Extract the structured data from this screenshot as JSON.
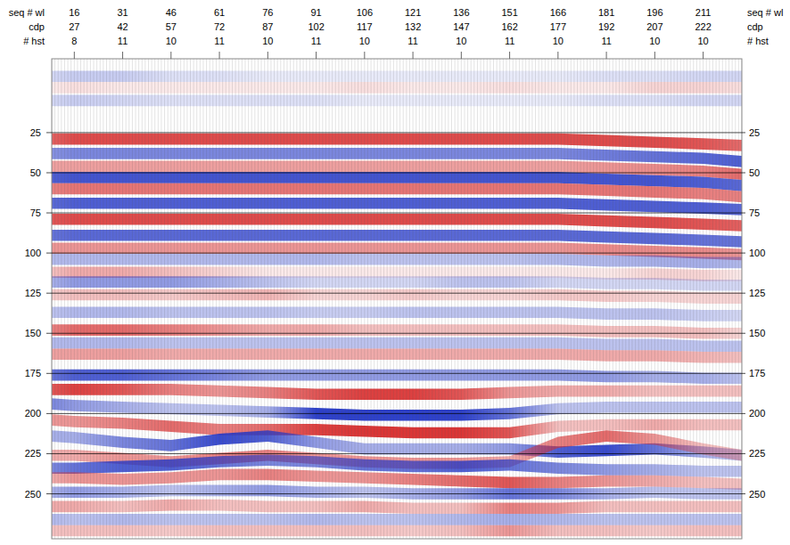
{
  "chart_data": {
    "type": "seismic",
    "header_rows": [
      "seq # wl",
      "cdp",
      "# hst"
    ],
    "xticks": [
      16,
      31,
      46,
      61,
      76,
      91,
      106,
      121,
      136,
      151,
      166,
      181,
      196,
      211
    ],
    "cdp": [
      27,
      42,
      57,
      72,
      87,
      102,
      117,
      132,
      147,
      162,
      177,
      192,
      207,
      222
    ],
    "hst": [
      8,
      11,
      10,
      11,
      10,
      11,
      10,
      11,
      10,
      11,
      10,
      11,
      10,
      10
    ],
    "xlim": [
      9,
      223
    ],
    "ylim": [
      -21,
      278
    ],
    "yticks": [
      25,
      50,
      75,
      100,
      125,
      150,
      175,
      200,
      225,
      250
    ],
    "grid": true,
    "x": [
      9,
      16,
      31,
      46,
      61,
      76,
      91,
      106,
      121,
      136,
      151,
      166,
      181,
      196,
      211,
      223
    ],
    "events": [
      {
        "color": "#2236c8",
        "t": [
          -10,
          -10,
          -10,
          -10,
          -10,
          -10,
          -10,
          -10,
          -10,
          -10,
          -10,
          -10,
          -10,
          -10,
          -10,
          -10
        ],
        "amp": [
          0.2,
          0.25,
          0.25,
          0.15,
          0.15,
          0.1,
          0.1,
          0.1,
          0.1,
          0.1,
          0.1,
          0.1,
          0.15,
          0.15,
          0.2,
          0.2
        ]
      },
      {
        "color": "#d92b2b",
        "t": [
          -3,
          -3,
          -3,
          -3,
          -3,
          -3,
          -3,
          -3,
          -3,
          -3,
          -3,
          -3,
          -3,
          -3,
          -3,
          -3
        ],
        "amp": [
          0.1,
          0.15,
          0.1,
          0.1,
          0.1,
          0.1,
          0.1,
          0.15,
          0.1,
          0.1,
          0.15,
          0.1,
          0.1,
          0.2,
          0.2,
          0.15
        ]
      },
      {
        "color": "#2236c8",
        "t": [
          5,
          5,
          5,
          5,
          5,
          5,
          5,
          5,
          5,
          5,
          5,
          5,
          5,
          5,
          5,
          5
        ],
        "amp": [
          0.2,
          0.25,
          0.2,
          0.15,
          0.15,
          0.15,
          0.15,
          0.1,
          0.1,
          0.1,
          0.1,
          0.1,
          0.15,
          0.15,
          0.2,
          0.2
        ]
      },
      {
        "color": "#d92b2b",
        "t": [
          29,
          29,
          29,
          29,
          29,
          29,
          29,
          29,
          29,
          29,
          29,
          29,
          30,
          31,
          32,
          33
        ],
        "amp": [
          0.75,
          0.85,
          0.85,
          0.85,
          0.85,
          0.85,
          0.85,
          0.85,
          0.85,
          0.85,
          0.85,
          0.85,
          0.85,
          0.85,
          0.8,
          0.7
        ]
      },
      {
        "color": "#2236c8",
        "t": [
          38,
          38,
          38,
          38,
          38,
          38,
          38,
          38,
          38,
          38,
          38,
          38,
          39,
          40,
          41,
          43
        ],
        "amp": [
          0.55,
          0.6,
          0.6,
          0.6,
          0.6,
          0.6,
          0.6,
          0.6,
          0.6,
          0.6,
          0.6,
          0.6,
          0.65,
          0.7,
          0.75,
          0.8
        ]
      },
      {
        "color": "#d92b2b",
        "t": [
          46,
          46,
          46,
          46,
          46,
          46,
          46,
          46,
          46,
          46,
          46,
          46,
          47,
          48,
          49,
          51
        ],
        "amp": [
          0.45,
          0.45,
          0.45,
          0.45,
          0.45,
          0.45,
          0.45,
          0.45,
          0.45,
          0.45,
          0.45,
          0.45,
          0.5,
          0.55,
          0.6,
          0.7
        ]
      },
      {
        "color": "#2236c8",
        "t": [
          53,
          53,
          53,
          53,
          53,
          53,
          53,
          53,
          53,
          53,
          53,
          53,
          54,
          55,
          56,
          58
        ],
        "amp": [
          0.8,
          0.85,
          0.85,
          0.85,
          0.85,
          0.85,
          0.85,
          0.85,
          0.85,
          0.85,
          0.85,
          0.85,
          0.85,
          0.85,
          0.8,
          0.75
        ]
      },
      {
        "color": "#d92b2b",
        "t": [
          60,
          60,
          60,
          60,
          60,
          60,
          60,
          60,
          60,
          60,
          60,
          60,
          61,
          62,
          63,
          65
        ],
        "amp": [
          0.6,
          0.65,
          0.65,
          0.65,
          0.65,
          0.65,
          0.65,
          0.65,
          0.65,
          0.65,
          0.65,
          0.65,
          0.65,
          0.65,
          0.6,
          0.6
        ]
      },
      {
        "color": "#2236c8",
        "t": [
          69,
          69,
          69,
          69,
          69,
          69,
          69,
          69,
          69,
          69,
          69,
          69,
          70,
          71,
          72,
          73
        ],
        "amp": [
          0.75,
          0.8,
          0.8,
          0.8,
          0.8,
          0.8,
          0.8,
          0.8,
          0.8,
          0.8,
          0.8,
          0.8,
          0.8,
          0.8,
          0.8,
          0.75
        ]
      },
      {
        "color": "#d92b2b",
        "t": [
          79,
          79,
          79,
          79,
          79,
          79,
          79,
          79,
          79,
          79,
          79,
          79,
          80,
          81,
          82,
          83
        ],
        "amp": [
          0.8,
          0.85,
          0.85,
          0.85,
          0.85,
          0.85,
          0.85,
          0.85,
          0.85,
          0.85,
          0.85,
          0.85,
          0.85,
          0.85,
          0.8,
          0.75
        ]
      },
      {
        "color": "#2236c8",
        "t": [
          89,
          89,
          89,
          89,
          89,
          89,
          89,
          89,
          89,
          89,
          89,
          89,
          90,
          91,
          92,
          93
        ],
        "amp": [
          0.7,
          0.75,
          0.75,
          0.75,
          0.75,
          0.75,
          0.75,
          0.75,
          0.75,
          0.75,
          0.75,
          0.75,
          0.75,
          0.75,
          0.7,
          0.7
        ]
      },
      {
        "color": "#d92b2b",
        "t": [
          97,
          97,
          97,
          97,
          97,
          97,
          97,
          97,
          97,
          97,
          97,
          97,
          98,
          99,
          100,
          101
        ],
        "amp": [
          0.5,
          0.5,
          0.5,
          0.5,
          0.5,
          0.5,
          0.5,
          0.5,
          0.5,
          0.5,
          0.5,
          0.5,
          0.55,
          0.55,
          0.55,
          0.5
        ]
      },
      {
        "color": "#2236c8",
        "t": [
          104,
          104,
          104,
          104,
          104,
          104,
          104,
          104,
          104,
          104,
          104,
          104,
          105,
          105,
          106,
          106
        ],
        "amp": [
          0.35,
          0.35,
          0.35,
          0.35,
          0.35,
          0.35,
          0.35,
          0.3,
          0.3,
          0.3,
          0.3,
          0.35,
          0.35,
          0.4,
          0.4,
          0.35
        ]
      },
      {
        "color": "#d92b2b",
        "t": [
          112,
          112,
          112,
          112,
          112,
          112,
          112,
          112,
          112,
          112,
          112,
          112,
          113,
          113,
          114,
          114
        ],
        "amp": [
          0.3,
          0.4,
          0.4,
          0.3,
          0.2,
          0.1,
          0.1,
          0.1,
          0.1,
          0.1,
          0.1,
          0.1,
          0.1,
          0.2,
          0.2,
          0.1
        ]
      },
      {
        "color": "#2236c8",
        "t": [
          118,
          118,
          118,
          118,
          118,
          118,
          118,
          118,
          118,
          118,
          118,
          118,
          119,
          119,
          120,
          120
        ],
        "amp": [
          0.4,
          0.5,
          0.5,
          0.5,
          0.4,
          0.3,
          0.2,
          0.2,
          0.2,
          0.3,
          0.3,
          0.2,
          0.2,
          0.2,
          0.2,
          0.2
        ]
      },
      {
        "color": "#d92b2b",
        "t": [
          126,
          126,
          126,
          126,
          126,
          126,
          126,
          126,
          126,
          126,
          126,
          126,
          127,
          127,
          128,
          128
        ],
        "amp": [
          0.25,
          0.3,
          0.3,
          0.25,
          0.3,
          0.35,
          0.2,
          0.2,
          0.25,
          0.2,
          0.2,
          0.25,
          0.25,
          0.2,
          0.2,
          0.2
        ]
      },
      {
        "color": "#2236c8",
        "t": [
          137,
          137,
          137,
          137,
          137,
          137,
          137,
          137,
          137,
          137,
          137,
          137,
          138,
          138,
          139,
          139
        ],
        "amp": [
          0.3,
          0.35,
          0.35,
          0.3,
          0.3,
          0.3,
          0.25,
          0.25,
          0.3,
          0.3,
          0.3,
          0.3,
          0.3,
          0.3,
          0.25,
          0.2
        ]
      },
      {
        "color": "#d92b2b",
        "t": [
          148,
          148,
          148,
          148,
          148,
          148,
          148,
          148,
          148,
          148,
          148,
          148,
          149,
          149,
          150,
          150
        ],
        "amp": [
          0.6,
          0.7,
          0.7,
          0.6,
          0.5,
          0.4,
          0.4,
          0.3,
          0.3,
          0.3,
          0.3,
          0.3,
          0.3,
          0.3,
          0.3,
          0.2
        ]
      },
      {
        "color": "#2236c8",
        "t": [
          156,
          156,
          156,
          156,
          156,
          156,
          156,
          156,
          156,
          156,
          156,
          156,
          157,
          157,
          158,
          158
        ],
        "amp": [
          0.35,
          0.35,
          0.35,
          0.3,
          0.3,
          0.3,
          0.3,
          0.3,
          0.3,
          0.3,
          0.3,
          0.3,
          0.3,
          0.3,
          0.3,
          0.3
        ]
      },
      {
        "color": "#d92b2b",
        "t": [
          163,
          163,
          163,
          163,
          163,
          163,
          163,
          163,
          163,
          163,
          163,
          163,
          164,
          164,
          165,
          165
        ],
        "amp": [
          0.45,
          0.45,
          0.45,
          0.4,
          0.4,
          0.4,
          0.4,
          0.4,
          0.4,
          0.4,
          0.4,
          0.4,
          0.4,
          0.4,
          0.35,
          0.3
        ]
      },
      {
        "color": "#2236c8",
        "t": [
          176,
          176,
          176,
          176,
          176,
          176,
          176,
          176,
          176,
          176,
          176,
          176,
          177,
          177,
          178,
          178
        ],
        "amp": [
          0.7,
          0.8,
          0.8,
          0.7,
          0.6,
          0.5,
          0.5,
          0.5,
          0.5,
          0.5,
          0.5,
          0.5,
          0.5,
          0.4,
          0.4,
          0.3
        ]
      },
      {
        "color": "#d92b2b",
        "t": [
          185,
          185,
          185,
          185,
          186,
          187,
          188,
          188,
          188,
          188,
          187,
          186,
          186,
          186,
          186,
          186
        ],
        "amp": [
          0.8,
          0.9,
          0.8,
          0.6,
          0.5,
          0.6,
          0.8,
          0.9,
          0.9,
          0.8,
          0.5,
          0.4,
          0.4,
          0.3,
          0.3,
          0.3
        ]
      },
      {
        "color": "#2236c8",
        "t": [
          194,
          195,
          196,
          197,
          198,
          199,
          200,
          201,
          201,
          201,
          200,
          197,
          196,
          196,
          196,
          196
        ],
        "amp": [
          0.6,
          0.5,
          0.4,
          0.3,
          0.3,
          0.4,
          0.95,
          0.95,
          0.95,
          0.95,
          0.7,
          0.3,
          0.3,
          0.3,
          0.3,
          0.3
        ]
      },
      {
        "color": "#d92b2b",
        "t": [
          204,
          205,
          206,
          208,
          210,
          210,
          210,
          211,
          212,
          212,
          212,
          208,
          207,
          207,
          207,
          207
        ],
        "amp": [
          0.5,
          0.5,
          0.6,
          0.7,
          0.6,
          0.7,
          0.9,
          0.95,
          0.95,
          0.95,
          0.8,
          0.3,
          0.3,
          0.4,
          0.3,
          0.3
        ]
      },
      {
        "color": "#2236c8",
        "t": [
          214,
          215,
          218,
          220,
          216,
          214,
          218,
          222,
          222,
          222,
          222,
          224,
          223,
          222,
          224,
          226
        ],
        "amp": [
          0.4,
          0.4,
          0.6,
          0.7,
          0.9,
          0.8,
          0.5,
          0.4,
          0.4,
          0.4,
          0.5,
          0.8,
          0.9,
          0.7,
          0.4,
          0.3
        ]
      },
      {
        "color": "#d92b2b",
        "t": [
          226,
          226,
          228,
          230,
          228,
          226,
          228,
          230,
          231,
          231,
          230,
          218,
          214,
          216,
          222,
          226
        ],
        "amp": [
          0.4,
          0.4,
          0.5,
          0.5,
          0.6,
          0.6,
          0.5,
          0.5,
          0.5,
          0.5,
          0.4,
          0.6,
          0.7,
          0.5,
          0.3,
          0.3
        ]
      },
      {
        "color": "#2236c8",
        "t": [
          234,
          234,
          233,
          232,
          230,
          229,
          230,
          232,
          233,
          233,
          232,
          234,
          235,
          235,
          236,
          236
        ],
        "amp": [
          0.6,
          0.7,
          0.8,
          0.8,
          0.7,
          0.6,
          0.6,
          0.7,
          0.7,
          0.8,
          0.7,
          0.6,
          0.5,
          0.4,
          0.3,
          0.3
        ]
      },
      {
        "color": "#d92b2b",
        "t": [
          240,
          240,
          241,
          240,
          238,
          238,
          239,
          240,
          241,
          242,
          243,
          243,
          242,
          242,
          243,
          244
        ],
        "amp": [
          0.4,
          0.5,
          0.5,
          0.5,
          0.5,
          0.6,
          0.5,
          0.5,
          0.6,
          0.7,
          0.8,
          0.6,
          0.5,
          0.4,
          0.3,
          0.3
        ]
      },
      {
        "color": "#2236c8",
        "t": [
          249,
          249,
          249,
          248,
          248,
          248,
          249,
          249,
          250,
          250,
          250,
          250,
          250,
          249,
          250,
          250
        ],
        "amp": [
          0.4,
          0.5,
          0.4,
          0.3,
          0.4,
          0.5,
          0.4,
          0.3,
          0.4,
          0.5,
          0.7,
          0.6,
          0.4,
          0.3,
          0.3,
          0.3
        ]
      },
      {
        "color": "#d92b2b",
        "t": [
          258,
          258,
          258,
          257,
          257,
          258,
          258,
          258,
          259,
          259,
          259,
          259,
          258,
          258,
          258,
          258
        ],
        "amp": [
          0.4,
          0.4,
          0.3,
          0.4,
          0.3,
          0.3,
          0.3,
          0.4,
          0.3,
          0.3,
          0.6,
          0.5,
          0.3,
          0.3,
          0.3,
          0.3
        ]
      },
      {
        "color": "#2236c8",
        "t": [
          266,
          266,
          266,
          266,
          266,
          266,
          266,
          266,
          266,
          266,
          266,
          266,
          266,
          266,
          266,
          266
        ],
        "amp": [
          0.35,
          0.3,
          0.35,
          0.3,
          0.3,
          0.3,
          0.35,
          0.3,
          0.3,
          0.35,
          0.4,
          0.35,
          0.3,
          0.3,
          0.3,
          0.3
        ]
      },
      {
        "color": "#d92b2b",
        "t": [
          273,
          273,
          273,
          273,
          273,
          273,
          273,
          273,
          273,
          273,
          273,
          273,
          273,
          273,
          273,
          273
        ],
        "amp": [
          0.3,
          0.3,
          0.3,
          0.25,
          0.3,
          0.3,
          0.3,
          0.3,
          0.25,
          0.3,
          0.5,
          0.3,
          0.3,
          0.25,
          0.3,
          0.3
        ]
      }
    ]
  }
}
